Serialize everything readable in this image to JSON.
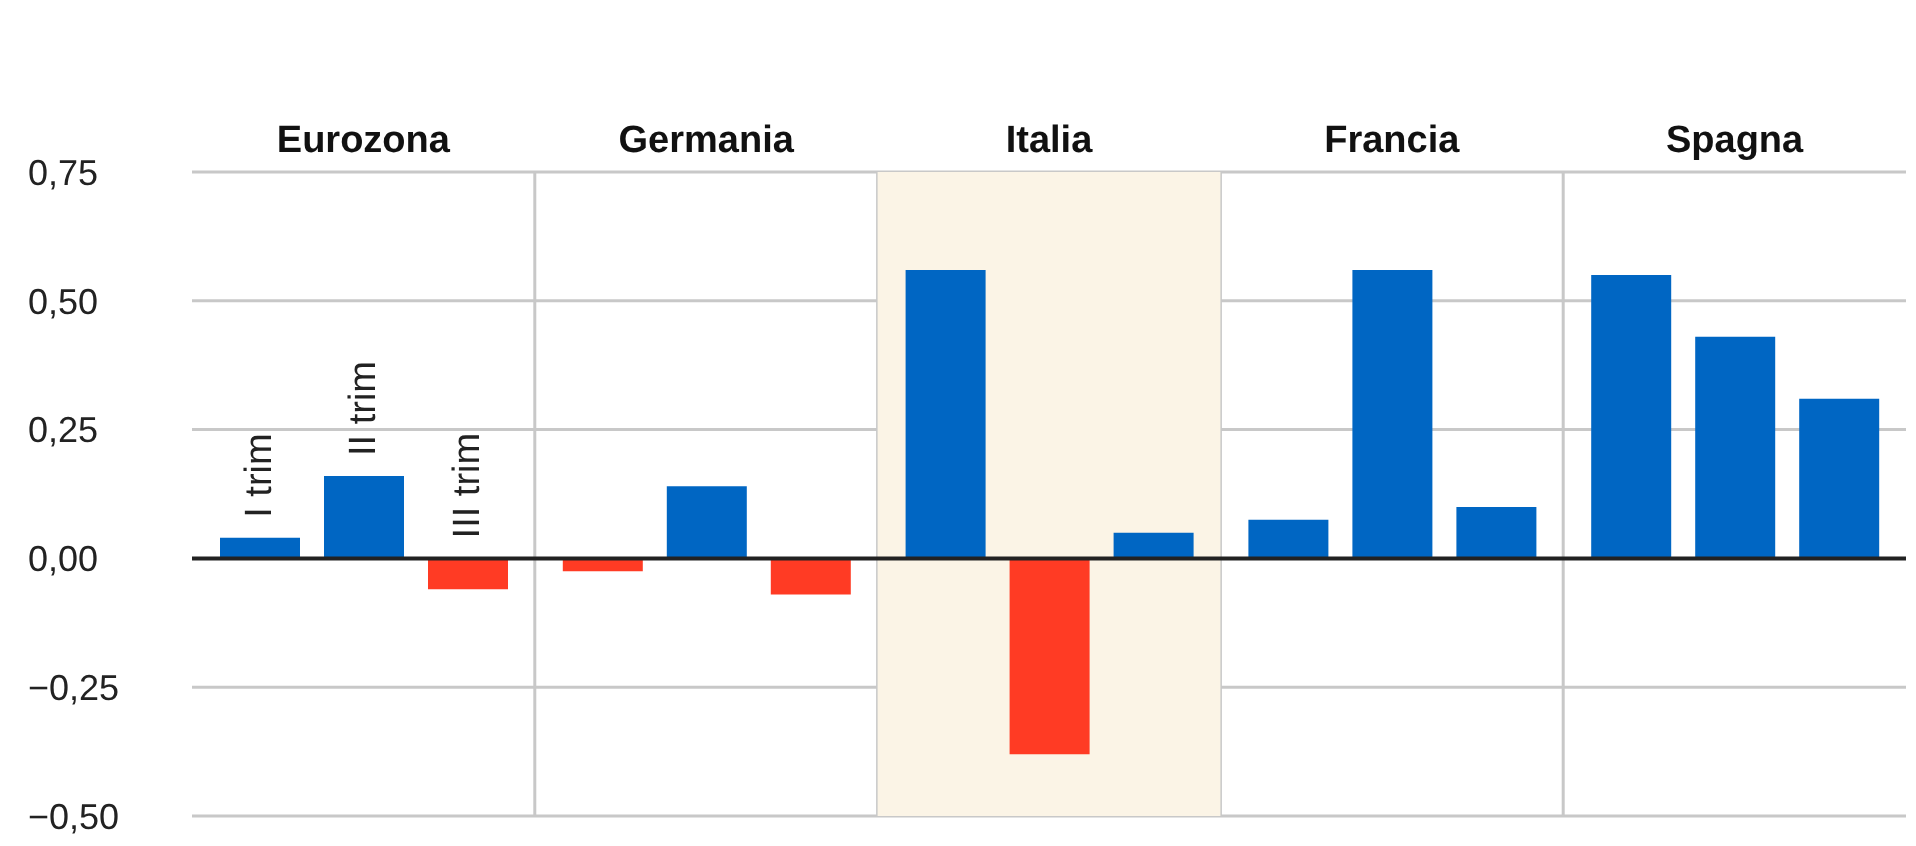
{
  "chart_data": {
    "type": "bar",
    "categories": [
      "Eurozona",
      "Germania",
      "Italia",
      "Francia",
      "Spagna"
    ],
    "series": [
      {
        "name": "I trim",
        "colors": [
          "#0066c3",
          "#ff3b24",
          "#0066c3",
          "#0066c3",
          "#0066c3"
        ],
        "values": [
          0.04,
          -0.025,
          0.56,
          0.075,
          0.55
        ]
      },
      {
        "name": "II trim",
        "colors": [
          "#0066c3",
          "#0066c3",
          "#ff3b24",
          "#0066c3",
          "#0066c3"
        ],
        "values": [
          0.16,
          0.14,
          -0.38,
          0.56,
          0.43
        ]
      },
      {
        "name": "III trim",
        "colors": [
          "#ff3b24",
          "#ff3b24",
          "#0066c3",
          "#0066c3",
          "#0066c3"
        ],
        "values": [
          -0.06,
          -0.07,
          0.05,
          0.1,
          0.31
        ]
      }
    ],
    "ylim": [
      -0.5,
      0.75
    ],
    "yticks": [
      {
        "value": -0.5,
        "label": "−0,50"
      },
      {
        "value": -0.25,
        "label": "−0,25"
      },
      {
        "value": 0,
        "label": "0,00"
      },
      {
        "value": 0.25,
        "label": "0,25"
      },
      {
        "value": 0.5,
        "label": "0,50"
      },
      {
        "value": 0.75,
        "label": "0,75"
      }
    ],
    "bands": [
      {
        "axis": "x",
        "from": "Italia",
        "to": "Italia",
        "color": "#fbf4e6"
      }
    ],
    "grid": true
  }
}
